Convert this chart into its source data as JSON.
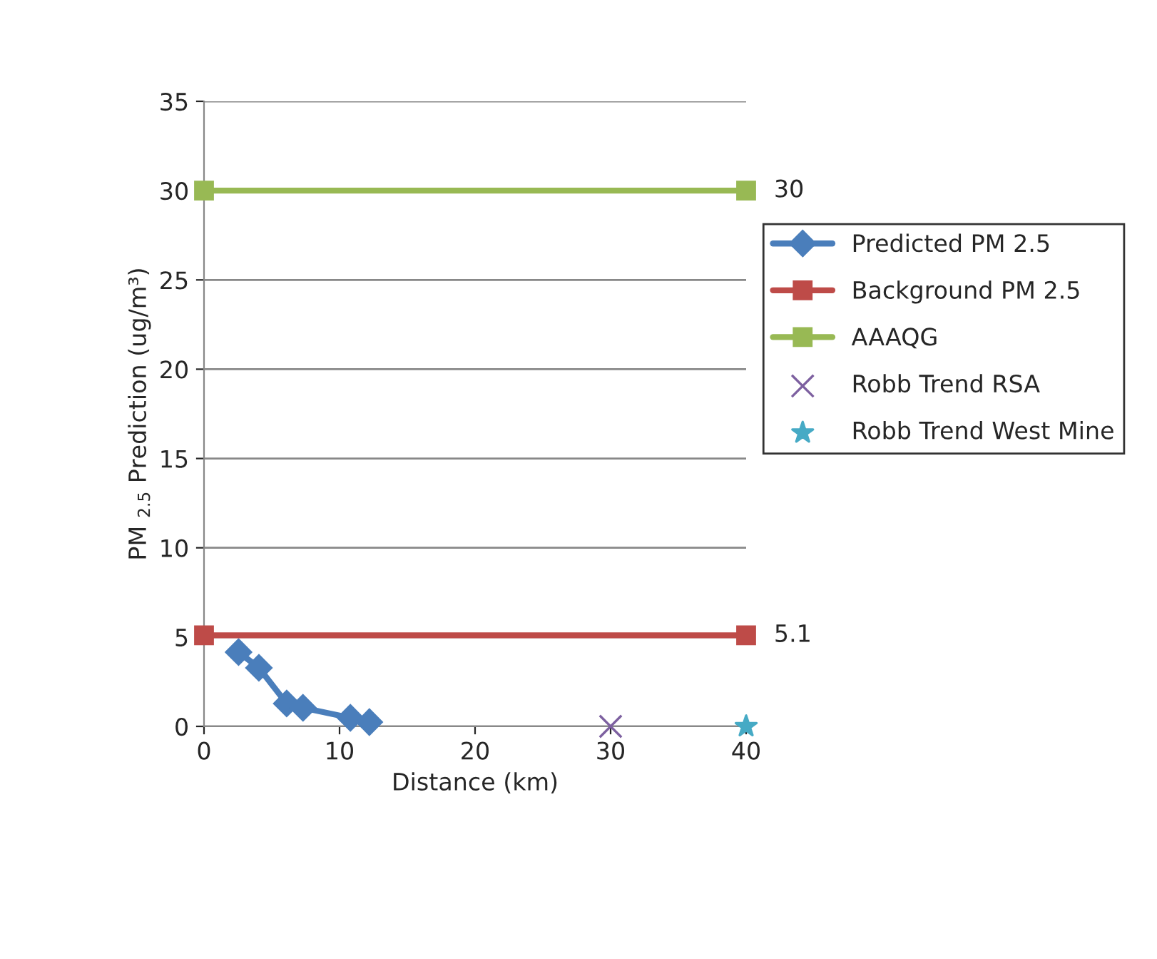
{
  "chart_data": {
    "type": "line",
    "xlabel": "Distance (km)",
    "ylabel": "PM $_{2.5}$ Prediction (ug/m³)",
    "xlim": [
      0,
      40
    ],
    "xticks": [
      0,
      10,
      20,
      30,
      40
    ],
    "ylim": [
      0,
      35
    ],
    "yticks": [
      0,
      5,
      10,
      15,
      20,
      25,
      30,
      35
    ],
    "grid": "y",
    "legend": "right",
    "series": [
      {
        "name": "Predicted PM 2.5",
        "color": "#4a7ebb",
        "marker": "diamond",
        "x": [
          2.55,
          4.05,
          6.1,
          7.3,
          10.8,
          12.2
        ],
        "values": [
          4.16,
          3.28,
          1.28,
          1.04,
          0.48,
          0.24
        ]
      },
      {
        "name": "Background PM 2.5",
        "color": "#be4b48",
        "marker": "square",
        "x": [
          0,
          40
        ],
        "values": [
          5.1,
          5.1
        ],
        "value_labels": [
          null,
          "5.1"
        ]
      },
      {
        "name": "AAAQG",
        "color": "#98b954",
        "marker": "square",
        "x": [
          0,
          40
        ],
        "values": [
          30,
          30
        ],
        "value_labels": [
          null,
          "30"
        ]
      },
      {
        "name": "Robb Trend RSA",
        "color": "#7d60a0",
        "type": "scatter",
        "marker": "cross",
        "x": [
          30
        ],
        "values": [
          0
        ]
      },
      {
        "name": "Robb Trend West Mine",
        "color": "#46aac5",
        "type": "scatter",
        "marker": "star",
        "x": [
          40
        ],
        "values": [
          0
        ]
      }
    ]
  }
}
